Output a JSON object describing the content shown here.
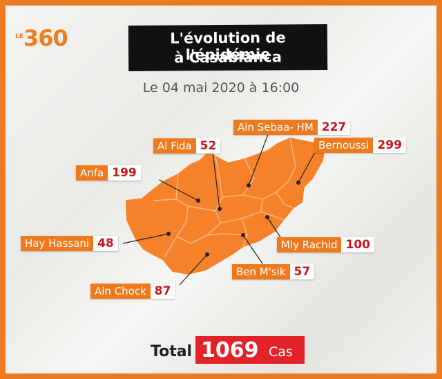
{
  "brand": {
    "logo_prefix": "LE",
    "logo_number": "360",
    "color": "#f07d1c"
  },
  "header": {
    "title_line1": "L'évolution de l'épidémie",
    "title_line2": "à Casablanca",
    "date": "Le 04 mai 2020 à 16:00"
  },
  "colors": {
    "map_fill": "#f5822a",
    "district_border": "#f7b98a",
    "label_bg": "#ef7a1e",
    "value_color": "#c8161d",
    "total_bg": "#e3222a"
  },
  "districts": [
    {
      "name": "Ain Sebaa- HM",
      "cases": "227"
    },
    {
      "name": "Al Fida",
      "cases": "52"
    },
    {
      "name": "Bernoussi",
      "cases": "299"
    },
    {
      "name": "Anfa",
      "cases": "199"
    },
    {
      "name": "Hay Hassani",
      "cases": "48"
    },
    {
      "name": "Mly Rachid",
      "cases": "100"
    },
    {
      "name": "Ben M'sik",
      "cases": "57"
    },
    {
      "name": "Ain Chock",
      "cases": "87"
    }
  ],
  "total": {
    "label": "Total",
    "value": "1069",
    "unit": "Cas"
  }
}
